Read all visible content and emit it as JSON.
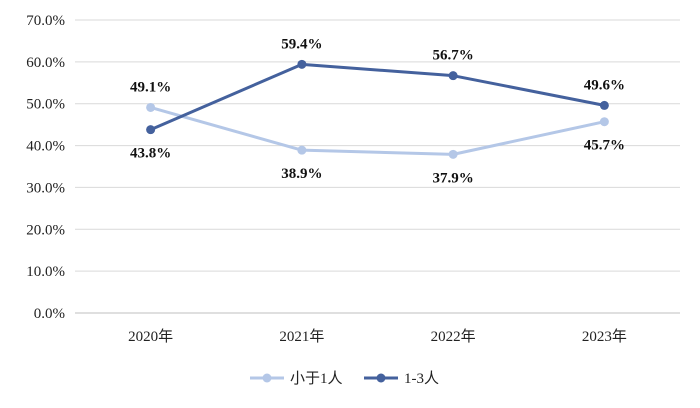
{
  "chart_data": {
    "type": "line",
    "title": "",
    "xlabel": "",
    "ylabel": "",
    "categories": [
      "2020年",
      "2021年",
      "2022年",
      "2023年"
    ],
    "ylim": [
      0,
      70
    ],
    "yticks": [
      0,
      10,
      20,
      30,
      40,
      50,
      60,
      70
    ],
    "ytick_labels": [
      "0.0%",
      "10.0%",
      "20.0%",
      "30.0%",
      "40.0%",
      "50.0%",
      "60.0%",
      "70.0%"
    ],
    "grid": true,
    "legend_position": "bottom",
    "series": [
      {
        "name": "小于1人",
        "color": "#b4c7e7",
        "values": [
          49.1,
          38.9,
          37.9,
          45.7
        ],
        "labels": [
          "49.1%",
          "38.9%",
          "37.9%",
          "45.7%"
        ]
      },
      {
        "name": "1-3人",
        "color": "#44619d",
        "values": [
          43.8,
          59.4,
          56.7,
          49.6
        ],
        "labels": [
          "43.8%",
          "59.4%",
          "56.7%",
          "49.6%"
        ]
      }
    ]
  }
}
